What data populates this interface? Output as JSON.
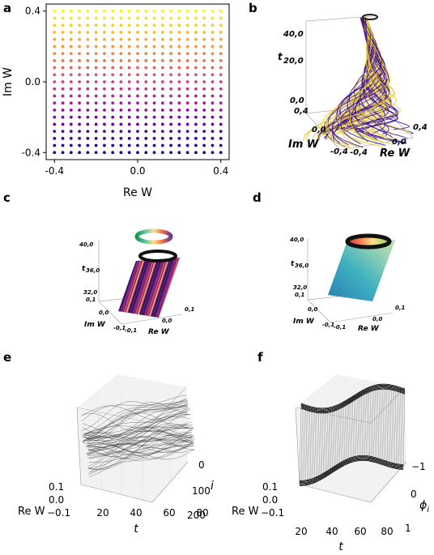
{
  "panels": {
    "a": {
      "letter": "a"
    },
    "b": {
      "letter": "b"
    },
    "c": {
      "letter": "c"
    },
    "d": {
      "letter": "d"
    },
    "e": {
      "letter": "e"
    },
    "f": {
      "letter": "f"
    }
  },
  "chart_data": [
    {
      "panel": "a",
      "type": "scatter",
      "xlabel": "Re W",
      "ylabel": "Im W",
      "xticks": [
        "-0.4",
        "0.0",
        "0.4"
      ],
      "yticks": [
        "0.4",
        "0.0",
        "-0.4"
      ],
      "xlim": [
        -0.44,
        0.44
      ],
      "ylim": [
        -0.44,
        0.44
      ],
      "grid_n": 21,
      "grid_range": [
        -0.4,
        0.4
      ],
      "colormap": [
        "#0d0887",
        "#7e03a8",
        "#cc4778",
        "#f89540",
        "#f0f921"
      ]
    },
    {
      "panel": "b",
      "type": "line3d",
      "labels": {
        "t": "t",
        "im": "Im W",
        "re": "Re W"
      },
      "ticks": {
        "t": [
          "40,0",
          "20,0",
          "0,0"
        ],
        "im": [
          "0,4",
          "0,0",
          "-0,4"
        ],
        "re": [
          "-0,4",
          "0,0",
          "0,4"
        ]
      },
      "colors": [
        "#3b0f8c",
        "#e8c93a"
      ]
    },
    {
      "panel": "c",
      "type": "surface3d",
      "labels": {
        "t": "t",
        "im": "Im W",
        "re": "Re W"
      },
      "ticks": {
        "t": [
          "40,0",
          "36,0",
          "32,0"
        ],
        "im": [
          "0,1",
          "0,0",
          "-0,1"
        ],
        "re": [
          "-0,1",
          "0,0",
          "0,1"
        ]
      }
    },
    {
      "panel": "d",
      "type": "surface3d",
      "labels": {
        "t": "t",
        "im": "Im W",
        "re": "Re W"
      },
      "ticks": {
        "t": [
          "40,0",
          "36,0",
          "32,0"
        ],
        "im": [
          "0,1",
          "0,0",
          "-0,1"
        ],
        "re": [
          "-0,1",
          "0,0",
          "0,1"
        ]
      }
    },
    {
      "panel": "e",
      "type": "line3d",
      "labels": {
        "t": "t",
        "i": "i",
        "re": "Re W"
      },
      "ticks": {
        "t": [
          "20",
          "40",
          "60",
          "80"
        ],
        "i": [
          "0",
          "100",
          "200"
        ],
        "re": [
          "0.1",
          "0.0",
          "−0.1"
        ]
      }
    },
    {
      "panel": "f",
      "type": "surface3d",
      "labels": {
        "t": "t",
        "phi": "ϕ",
        "phi_sub": "i",
        "re": "Re W"
      },
      "ticks": {
        "t": [
          "20",
          "40",
          "60",
          "80"
        ],
        "phi": [
          "−1",
          "0",
          "1"
        ],
        "re": [
          "0.1",
          "0.0",
          "−0.1"
        ]
      }
    }
  ]
}
